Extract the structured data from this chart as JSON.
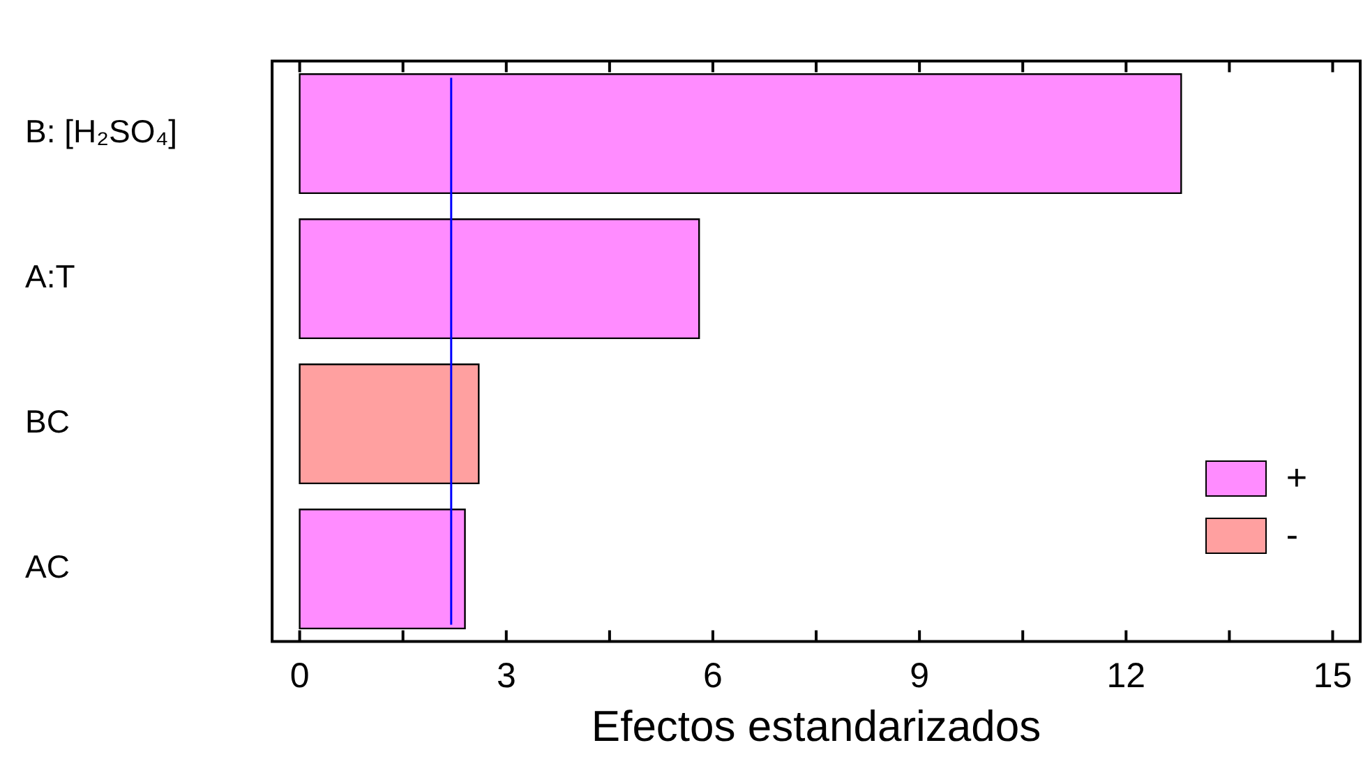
{
  "chart_data": {
    "type": "bar",
    "orientation": "horizontal",
    "xlabel": "Efectos estandarizados",
    "categories": [
      "B: [H₂SO₄]",
      "A:T",
      "BC",
      "AC"
    ],
    "series": [
      {
        "name": "+",
        "color": "#ff8cff",
        "values": [
          12.8,
          5.8,
          null,
          2.4
        ]
      },
      {
        "name": "-",
        "color": "#ffa0a0",
        "values": [
          null,
          null,
          2.6,
          null
        ]
      }
    ],
    "xlim": [
      -0.4,
      15.4
    ],
    "xticks": [
      0,
      {
        "value": 1.5,
        "label": null
      },
      3,
      {
        "value": 4.5,
        "label": null
      },
      6,
      {
        "value": 7.5,
        "label": null
      },
      9,
      {
        "value": 10.5,
        "label": null
      },
      12,
      {
        "value": 13.5,
        "label": null
      },
      15
    ],
    "ref_lines": [
      {
        "axis": "x",
        "value": 2.2,
        "color": "#0000ff"
      }
    ],
    "grid": false,
    "legend": "bottom right"
  }
}
